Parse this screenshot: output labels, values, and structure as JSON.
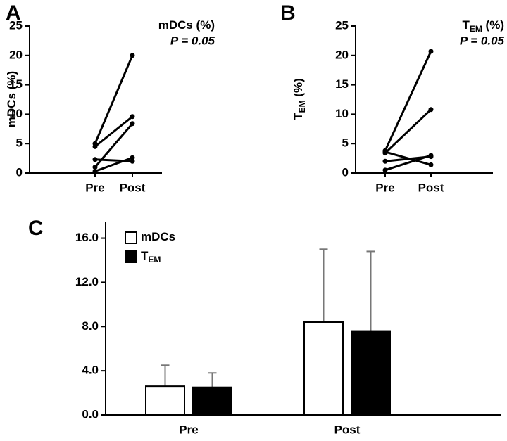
{
  "chart_data": [
    {
      "type": "line",
      "panel_label": "A",
      "title": {
        "text": "mDCs (%)"
      },
      "annotation": "P = 0.05",
      "ylabel": {
        "text": "mDCs (%)"
      },
      "categories": [
        "Pre",
        "Post"
      ],
      "series": [
        {
          "color": "#000000",
          "values": [
            5.0,
            20.0
          ]
        },
        {
          "color": "#000000",
          "values": [
            4.5,
            9.6
          ]
        },
        {
          "color": "#000000",
          "values": [
            2.3,
            2.0
          ]
        },
        {
          "color": "#000000",
          "values": [
            1.0,
            8.4
          ]
        },
        {
          "color": "#000000",
          "values": [
            0.3,
            2.6
          ]
        }
      ],
      "ylim": [
        0,
        25
      ],
      "yticks": [
        0,
        5,
        10,
        15,
        20,
        25
      ]
    },
    {
      "type": "line",
      "panel_label": "B",
      "title": {
        "text": "T",
        "subscript": "EM",
        "suffix": " (%)"
      },
      "annotation": "P = 0.05",
      "ylabel": {
        "text": "T",
        "subscript": "EM",
        "suffix": " (%)"
      },
      "categories": [
        "Pre",
        "Post"
      ],
      "series": [
        {
          "color": "#000000",
          "values": [
            3.8,
            20.7
          ]
        },
        {
          "color": "#000000",
          "values": [
            3.4,
            10.8
          ]
        },
        {
          "color": "#000000",
          "values": [
            3.6,
            1.4
          ]
        },
        {
          "color": "#000000",
          "values": [
            2.0,
            2.8
          ]
        },
        {
          "color": "#000000",
          "values": [
            0.5,
            3.0
          ]
        }
      ],
      "ylim": [
        0,
        25
      ],
      "yticks": [
        0,
        5,
        10,
        15,
        20,
        25
      ]
    },
    {
      "type": "bar",
      "panel_label": "C",
      "categories": [
        "Pre",
        "Post"
      ],
      "series": [
        {
          "name": {
            "text": "mDCs"
          },
          "color": "#ffffff",
          "values": [
            2.6,
            8.4
          ],
          "errors": [
            1.9,
            6.6
          ]
        },
        {
          "name": {
            "text": "T",
            "subscript": "EM"
          },
          "color": "#000000",
          "values": [
            2.5,
            7.6
          ],
          "errors": [
            1.3,
            7.2
          ]
        }
      ],
      "ylim": [
        0,
        17.5
      ],
      "yticks": [
        {
          "value": 0,
          "label": "0.0"
        },
        {
          "value": 4,
          "label": "4.0"
        },
        {
          "value": 8,
          "label": "8.0"
        },
        {
          "value": 12,
          "label": "12.0"
        },
        {
          "value": 16,
          "label": "16.0"
        }
      ]
    }
  ]
}
